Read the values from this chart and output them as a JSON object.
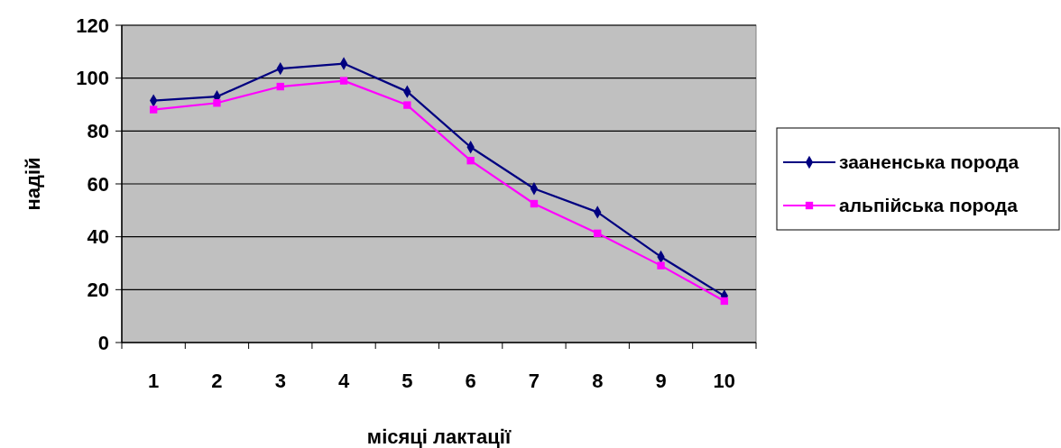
{
  "chart_data": {
    "type": "line",
    "xlabel": "місяці лактації",
    "ylabel": "надій",
    "categories": [
      "1",
      "2",
      "3",
      "4",
      "5",
      "6",
      "7",
      "8",
      "9",
      "10"
    ],
    "series": [
      {
        "name": "зааненська порода",
        "color": "#000080",
        "marker": "diamond",
        "values": [
          91.5,
          93,
          103.6,
          105.5,
          94.9,
          73.9,
          58.2,
          49.3,
          32.4,
          17.6
        ]
      },
      {
        "name": "альпійська порода",
        "color": "#ff00ff",
        "marker": "square",
        "values": [
          88.1,
          90.6,
          96.8,
          99,
          89.8,
          68.8,
          52.5,
          41.3,
          29.1,
          15.7
        ]
      }
    ],
    "ylim": [
      0,
      120
    ],
    "yticks": [
      0,
      20,
      40,
      60,
      80,
      100,
      120
    ],
    "grid": "y",
    "legend": "right"
  }
}
